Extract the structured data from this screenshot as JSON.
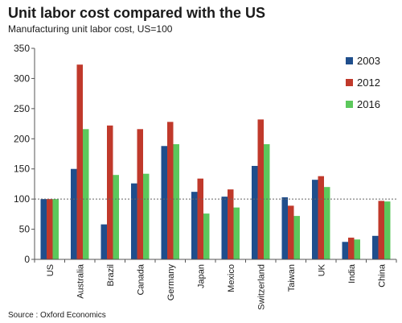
{
  "chart_data": {
    "type": "bar",
    "title": "Unit labor cost compared with the US",
    "subtitle": "Manufacturing unit labor cost, US=100",
    "source": "Source : Oxford Economics",
    "categories": [
      "US",
      "Australia",
      "Brazil",
      "Canada",
      "Germany",
      "Japan",
      "Mexico",
      "Switzerland",
      "Taiwan",
      "UK",
      "India",
      "China"
    ],
    "series": [
      {
        "name": "2003",
        "color": "#1f4e8c",
        "values": [
          100,
          150,
          58,
          126,
          188,
          112,
          104,
          155,
          103,
          132,
          29,
          39
        ]
      },
      {
        "name": "2012",
        "color": "#c0392b",
        "values": [
          100,
          323,
          222,
          216,
          228,
          134,
          116,
          232,
          89,
          138,
          36,
          97
        ]
      },
      {
        "name": "2016",
        "color": "#5cc85c",
        "values": [
          100,
          216,
          140,
          142,
          191,
          76,
          86,
          191,
          72,
          120,
          33,
          96
        ]
      }
    ],
    "ylim": [
      0,
      350
    ],
    "yticks": [
      0,
      50,
      100,
      150,
      200,
      250,
      300,
      350
    ],
    "reference_line": 100,
    "xlabel": "",
    "ylabel": "",
    "legend_position": "top-right",
    "grid": false
  }
}
